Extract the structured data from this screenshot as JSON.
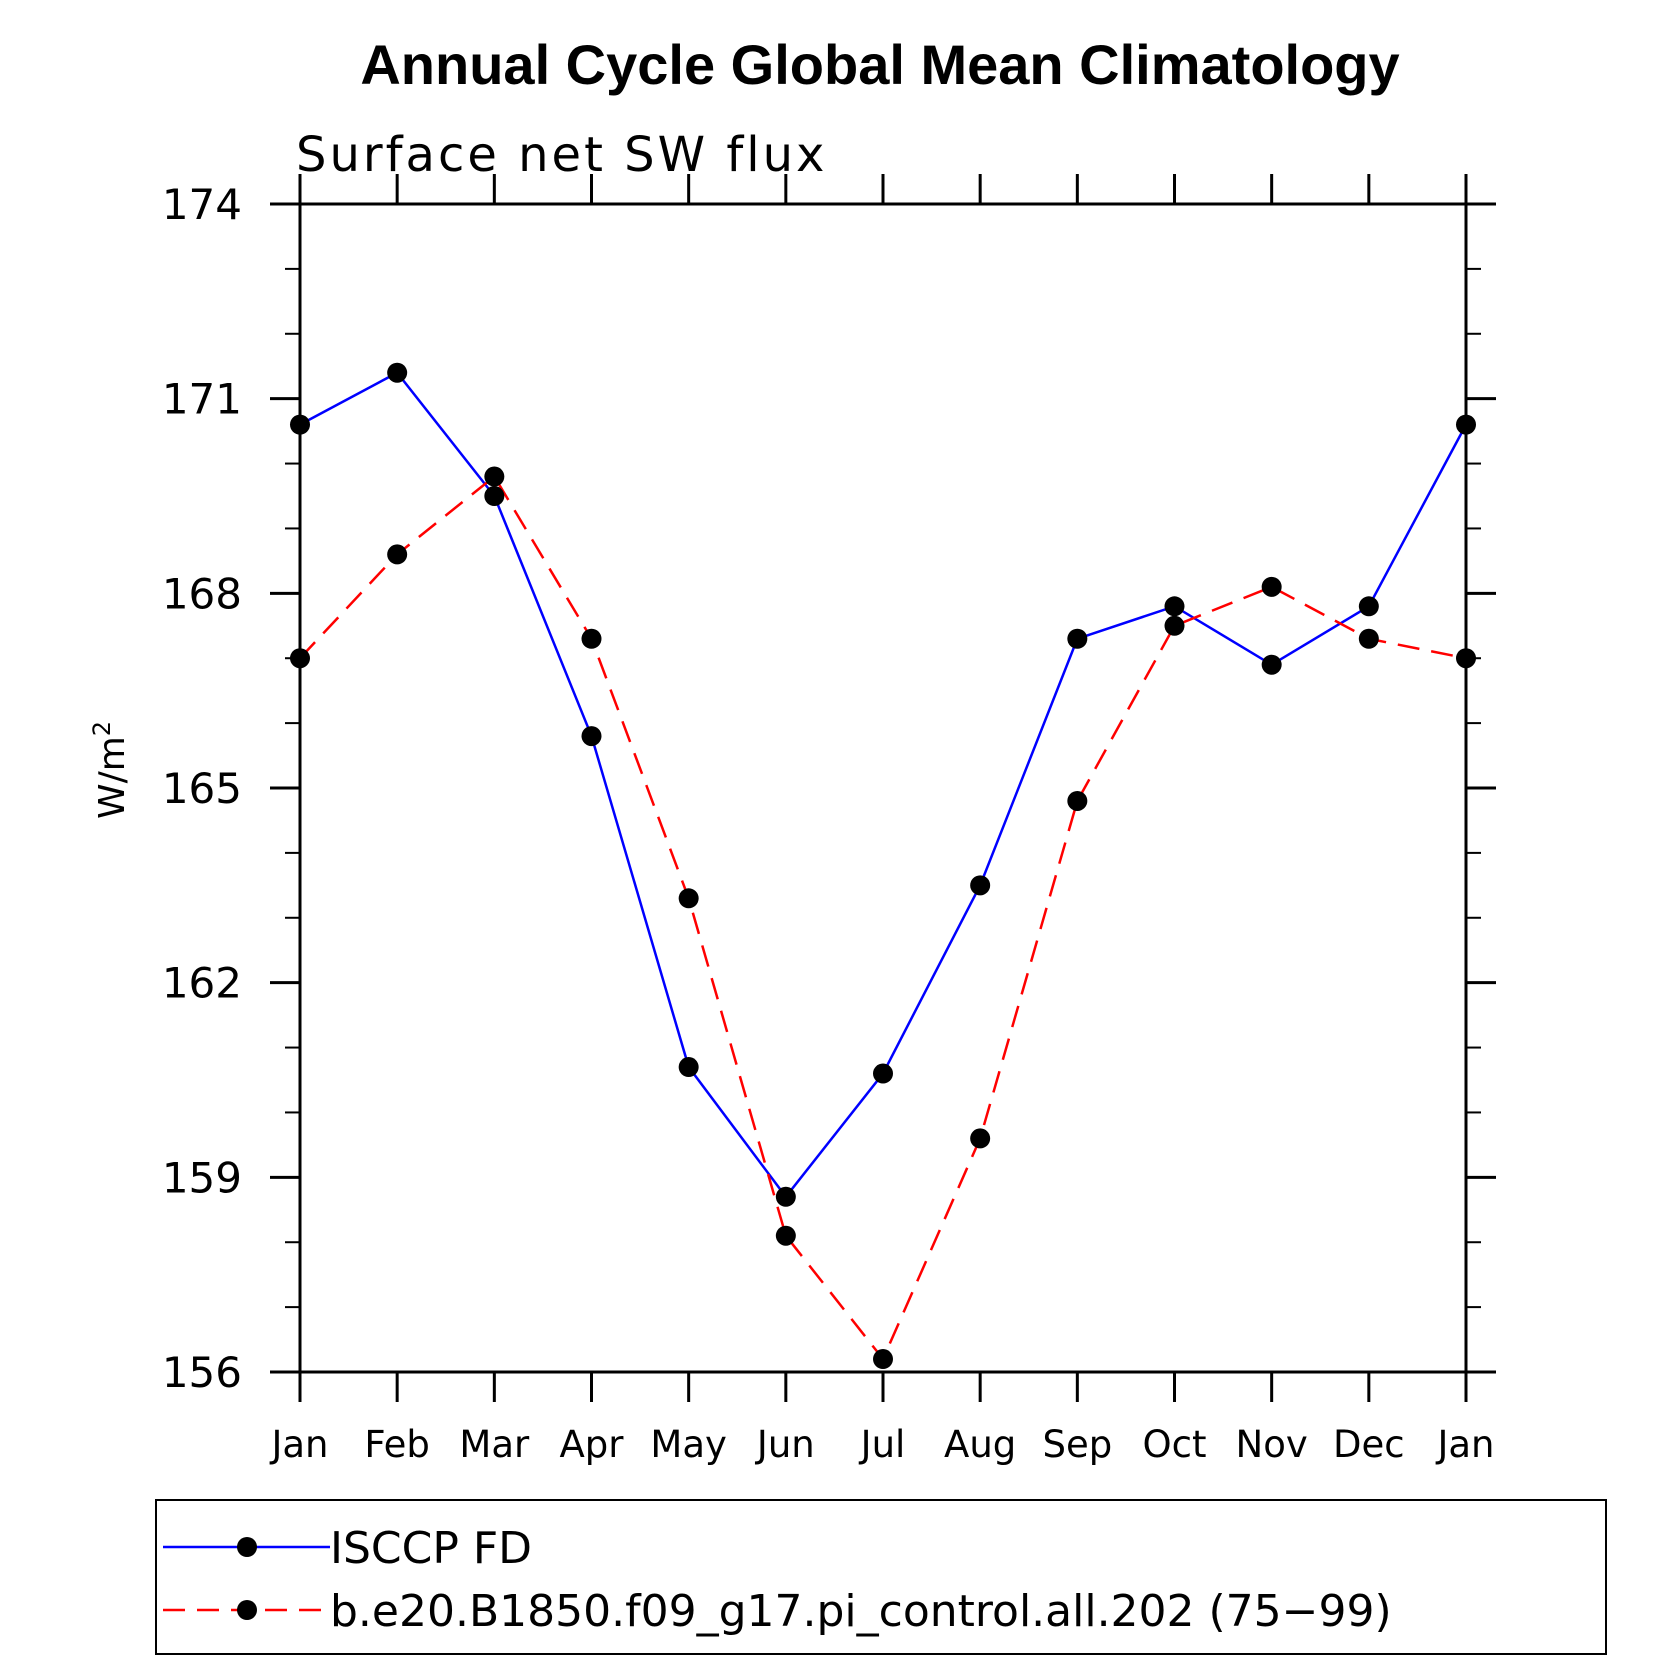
{
  "chart_data": {
    "type": "line",
    "title": "Annual Cycle Global Mean Climatology",
    "subtitle": "Surface net SW flux",
    "ylabel": "W/m",
    "ylabel_superscript": "2",
    "ylim": [
      156,
      174
    ],
    "yticks": [
      156,
      159,
      162,
      165,
      168,
      171,
      174
    ],
    "categories": [
      "Jan",
      "Feb",
      "Mar",
      "Apr",
      "May",
      "Jun",
      "Jul",
      "Aug",
      "Sep",
      "Oct",
      "Nov",
      "Dec",
      "Jan"
    ],
    "series": [
      {
        "name": "ISCCP FD",
        "color": "#0000ff",
        "dash": "solid",
        "values": [
          170.6,
          171.4,
          169.5,
          165.8,
          160.7,
          158.7,
          160.6,
          163.5,
          167.3,
          167.8,
          166.9,
          167.8,
          170.6
        ]
      },
      {
        "name": "b.e20.B1850.f09_g17.pi_control.all.202 (75−99)",
        "color": "#ff0000",
        "dash": "dashed",
        "values": [
          167.0,
          168.6,
          169.8,
          167.3,
          163.3,
          158.1,
          156.2,
          159.6,
          164.8,
          167.5,
          168.1,
          167.3,
          167.0
        ]
      }
    ],
    "legend_position": "bottom"
  }
}
